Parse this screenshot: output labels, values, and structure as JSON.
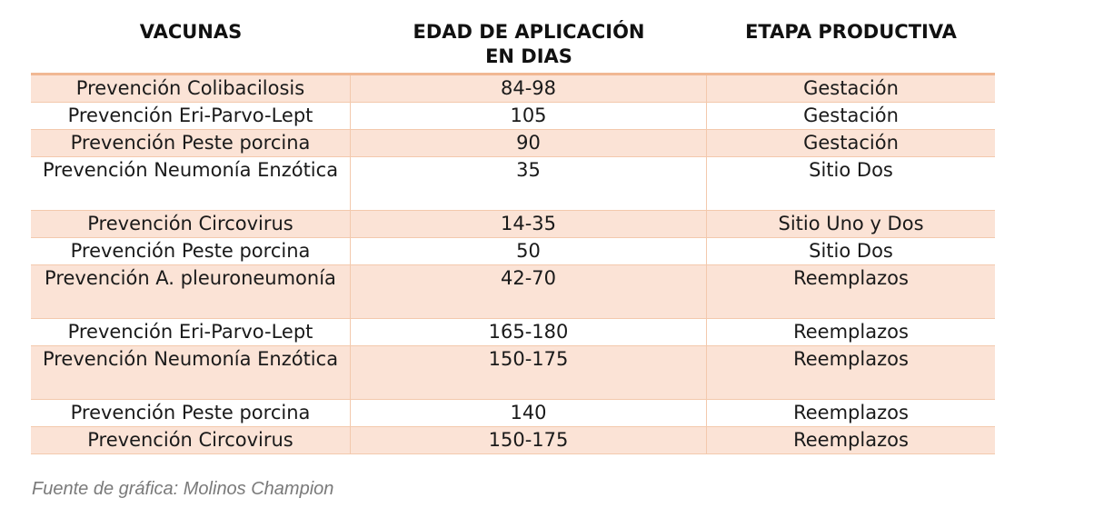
{
  "table": {
    "headers": {
      "col1": "VACUNAS",
      "col2_line1": "EDAD DE APLICACIÓN",
      "col2_line2": "EN DIAS",
      "col3": "ETAPA PRODUCTIVA"
    },
    "rows": [
      {
        "vacuna": "Prevención Colibacilosis",
        "edad": "84-98",
        "etapa": "Gestación"
      },
      {
        "vacuna": "Prevención Eri-Parvo-Lept",
        "edad": "105",
        "etapa": "Gestación"
      },
      {
        "vacuna": "Prevención Peste porcina",
        "edad": "90",
        "etapa": "Gestación"
      },
      {
        "vacuna": "Prevención Neumonía Enzótica",
        "edad": "35",
        "etapa": "Sitio Dos"
      },
      {
        "vacuna": "Prevención Circovirus",
        "edad": "14-35",
        "etapa": "Sitio Uno y Dos"
      },
      {
        "vacuna": "Prevención Peste porcina",
        "edad": "50",
        "etapa": "Sitio Dos"
      },
      {
        "vacuna": "Prevención A. pleuroneumonía",
        "edad": "42-70",
        "etapa": "Reemplazos"
      },
      {
        "vacuna": "Prevención Eri-Parvo-Lept",
        "edad": "165-180",
        "etapa": "Reemplazos"
      },
      {
        "vacuna": "Prevención Neumonía Enzótica",
        "edad": "150-175",
        "etapa": "Reemplazos"
      },
      {
        "vacuna": "Prevención Peste porcina",
        "edad": "140",
        "etapa": "Reemplazos"
      },
      {
        "vacuna": "Prevención Circovirus",
        "edad": "150-175",
        "etapa": "Reemplazos"
      }
    ]
  },
  "caption": "Fuente de gráfica: Molinos Champion",
  "colors": {
    "row_shade": "#fbe3d6",
    "border": "#f3c9ad",
    "header_rule": "#f1b893"
  }
}
